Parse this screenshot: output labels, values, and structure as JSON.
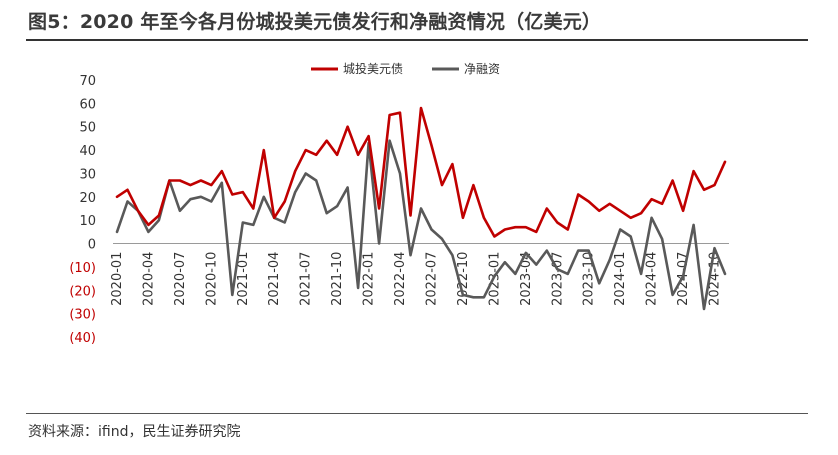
{
  "page": {
    "title": "图5：2020 年至今各月份城投美元债发行和净融资情况（亿美元）",
    "source": "资料来源：ifind，民生证券研究院"
  },
  "colors": {
    "issuance": "#c00000",
    "net_financing": "#595959",
    "negative_label": "#c00000",
    "axis_text": "#333333"
  },
  "chart_data": {
    "type": "line",
    "title": "",
    "xlabel": "",
    "ylabel": "",
    "ylim": [
      -40,
      70
    ],
    "yticks": [
      {
        "value": 70,
        "label": "70"
      },
      {
        "value": 60,
        "label": "60"
      },
      {
        "value": 50,
        "label": "50"
      },
      {
        "value": 40,
        "label": "40"
      },
      {
        "value": 30,
        "label": "30"
      },
      {
        "value": 20,
        "label": "20"
      },
      {
        "value": 10,
        "label": "10"
      },
      {
        "value": 0,
        "label": "0"
      },
      {
        "value": -10,
        "label": "(10)"
      },
      {
        "value": -20,
        "label": "(20)"
      },
      {
        "value": -30,
        "label": "(30)"
      },
      {
        "value": -40,
        "label": "(40)"
      }
    ],
    "grid": false,
    "legend_position": "top-center",
    "x": [
      "2020-01",
      "2020-02",
      "2020-03",
      "2020-04",
      "2020-05",
      "2020-06",
      "2020-07",
      "2020-08",
      "2020-09",
      "2020-10",
      "2020-11",
      "2020-12",
      "2021-01",
      "2021-02",
      "2021-03",
      "2021-04",
      "2021-05",
      "2021-06",
      "2021-07",
      "2021-08",
      "2021-09",
      "2021-10",
      "2021-11",
      "2021-12",
      "2022-01",
      "2022-02",
      "2022-03",
      "2022-04",
      "2022-05",
      "2022-06",
      "2022-07",
      "2022-08",
      "2022-09",
      "2022-10",
      "2022-11",
      "2022-12",
      "2023-01",
      "2023-02",
      "2023-03",
      "2023-04",
      "2023-05",
      "2023-06",
      "2023-07",
      "2023-08",
      "2023-09",
      "2023-10",
      "2023-11",
      "2023-12",
      "2024-01",
      "2024-02",
      "2024-03",
      "2024-04",
      "2024-05",
      "2024-06",
      "2024-07",
      "2024-08",
      "2024-09",
      "2024-10",
      "2024-11"
    ],
    "x_tick_labels": [
      "2020-01",
      "2020-04",
      "2020-07",
      "2020-10",
      "2021-01",
      "2021-04",
      "2021-07",
      "2021-10",
      "2022-01",
      "2022-04",
      "2022-07",
      "2022-10",
      "2023-01",
      "2023-04",
      "2023-07",
      "2023-10",
      "2024-01",
      "2024-04",
      "2024-07",
      "2024-10"
    ],
    "series": [
      {
        "name": "城投美元债",
        "values": [
          20,
          23,
          14,
          8,
          12,
          27,
          27,
          25,
          27,
          25,
          31,
          21,
          22,
          15,
          40,
          11,
          18,
          31,
          40,
          38,
          44,
          38,
          50,
          38,
          46,
          15,
          55,
          56,
          12,
          58,
          42,
          25,
          34,
          11,
          25,
          11,
          3,
          6,
          7,
          7,
          5,
          15,
          9,
          6,
          21,
          18,
          14,
          17,
          14,
          11,
          13,
          19,
          17,
          27,
          14,
          31,
          23,
          25,
          35
        ]
      },
      {
        "name": "净融资",
        "values": [
          5,
          18,
          14,
          5,
          10,
          27,
          14,
          19,
          20,
          18,
          26,
          -22,
          9,
          8,
          20,
          11,
          9,
          22,
          30,
          27,
          13,
          16,
          24,
          -19,
          43,
          0,
          44,
          30,
          -5,
          15,
          6,
          2,
          -5,
          -22,
          -23,
          -23,
          -14,
          -8,
          -13,
          -4,
          -9,
          -3,
          -11,
          -13,
          -3,
          -3,
          -17,
          -7,
          6,
          3,
          -13,
          11,
          2,
          -22,
          -14,
          8,
          -28,
          -2,
          -13
        ]
      }
    ]
  }
}
